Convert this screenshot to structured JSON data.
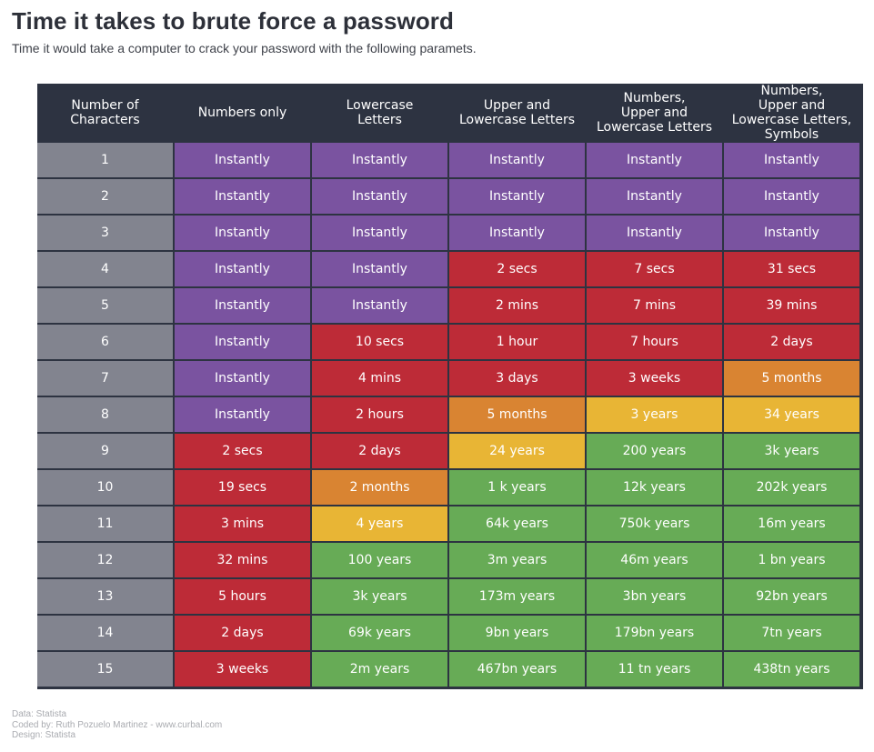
{
  "title": "Time it takes to brute force a password",
  "subtitle": "Time it would take a computer to crack your password with the following paramets.",
  "footer": {
    "line1": "Data: Statista",
    "line2": "Coded by: Ruth Pozuelo Martinez - www.curbal.com",
    "line3": "Design: Statista"
  },
  "colors": {
    "header": "#2d3341",
    "rowhead": "#82848f",
    "instant": "#7a53a0",
    "red": "#bd2b37",
    "orange": "#d98432",
    "yellow": "#e8b535",
    "green": "#67ab56"
  },
  "chart_data": {
    "type": "table",
    "columns": [
      "Number of\nCharacters",
      "Numbers only",
      "Lowercase\nLetters",
      "Upper and\nLowercase Letters",
      "Numbers,\nUpper and\nLowercase Letters",
      "Numbers,\nUpper and\nLowercase Letters,\nSymbols"
    ],
    "rows": [
      {
        "chars": "1",
        "values": [
          "Instantly",
          "Instantly",
          "Instantly",
          "Instantly",
          "Instantly"
        ],
        "levels": [
          "instant",
          "instant",
          "instant",
          "instant",
          "instant"
        ]
      },
      {
        "chars": "2",
        "values": [
          "Instantly",
          "Instantly",
          "Instantly",
          "Instantly",
          "Instantly"
        ],
        "levels": [
          "instant",
          "instant",
          "instant",
          "instant",
          "instant"
        ]
      },
      {
        "chars": "3",
        "values": [
          "Instantly",
          "Instantly",
          "Instantly",
          "Instantly",
          "Instantly"
        ],
        "levels": [
          "instant",
          "instant",
          "instant",
          "instant",
          "instant"
        ]
      },
      {
        "chars": "4",
        "values": [
          "Instantly",
          "Instantly",
          "2 secs",
          "7 secs",
          "31 secs"
        ],
        "levels": [
          "instant",
          "instant",
          "red",
          "red",
          "red"
        ]
      },
      {
        "chars": "5",
        "values": [
          "Instantly",
          "Instantly",
          "2 mins",
          "7 mins",
          "39 mins"
        ],
        "levels": [
          "instant",
          "instant",
          "red",
          "red",
          "red"
        ]
      },
      {
        "chars": "6",
        "values": [
          "Instantly",
          "10 secs",
          "1 hour",
          "7 hours",
          "2 days"
        ],
        "levels": [
          "instant",
          "red",
          "red",
          "red",
          "red"
        ]
      },
      {
        "chars": "7",
        "values": [
          "Instantly",
          "4 mins",
          "3 days",
          "3 weeks",
          "5 months"
        ],
        "levels": [
          "instant",
          "red",
          "red",
          "red",
          "orange"
        ]
      },
      {
        "chars": "8",
        "values": [
          "Instantly",
          "2 hours",
          "5 months",
          "3 years",
          "34 years"
        ],
        "levels": [
          "instant",
          "red",
          "orange",
          "yellow",
          "yellow"
        ]
      },
      {
        "chars": "9",
        "values": [
          "2 secs",
          "2 days",
          "24 years",
          "200 years",
          "3k years"
        ],
        "levels": [
          "red",
          "red",
          "yellow",
          "green",
          "green"
        ]
      },
      {
        "chars": "10",
        "values": [
          "19 secs",
          "2 months",
          "1 k years",
          "12k years",
          "202k years"
        ],
        "levels": [
          "red",
          "orange",
          "green",
          "green",
          "green"
        ]
      },
      {
        "chars": "11",
        "values": [
          "3 mins",
          "4 years",
          "64k years",
          "750k years",
          "16m years"
        ],
        "levels": [
          "red",
          "yellow",
          "green",
          "green",
          "green"
        ]
      },
      {
        "chars": "12",
        "values": [
          "32 mins",
          "100 years",
          "3m years",
          "46m years",
          "1 bn years"
        ],
        "levels": [
          "red",
          "green",
          "green",
          "green",
          "green"
        ]
      },
      {
        "chars": "13",
        "values": [
          "5 hours",
          "3k years",
          "173m years",
          "3bn years",
          "92bn years"
        ],
        "levels": [
          "red",
          "green",
          "green",
          "green",
          "green"
        ]
      },
      {
        "chars": "14",
        "values": [
          "2 days",
          "69k years",
          "9bn years",
          "179bn years",
          "7tn years"
        ],
        "levels": [
          "red",
          "green",
          "green",
          "green",
          "green"
        ]
      },
      {
        "chars": "15",
        "values": [
          "3 weeks",
          "2m years",
          "467bn years",
          "11 tn years",
          "438tn years"
        ],
        "levels": [
          "red",
          "green",
          "green",
          "green",
          "green"
        ]
      }
    ]
  }
}
